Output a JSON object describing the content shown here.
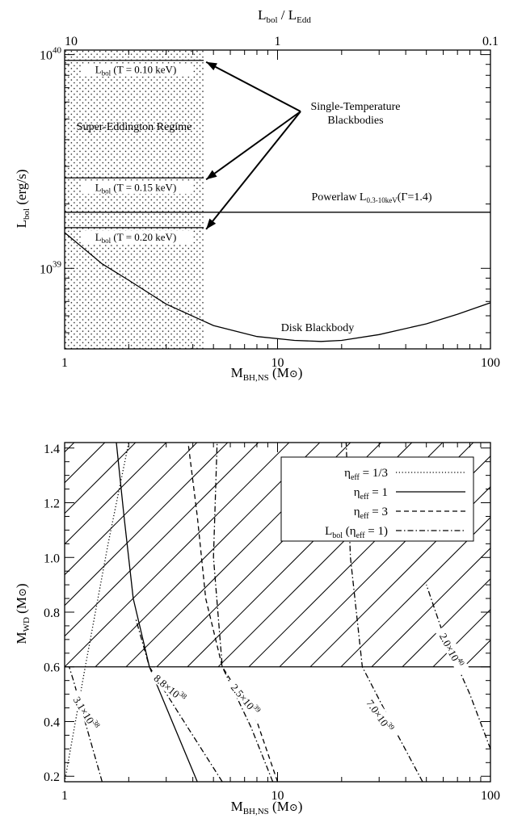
{
  "chart_data": [
    {
      "type": "line",
      "x_scale": "log",
      "y_scale": "log",
      "xlim": [
        1,
        100
      ],
      "ylim": [
        4.2e+38,
        1.05e+40
      ],
      "grid": false,
      "xlabel": {
        "main": "M",
        "sub": "BH,NS",
        "unit": "(M",
        "unit_tail": ")"
      },
      "ylabel": {
        "main": "L",
        "sub": "bol",
        "unit": " (erg/s)"
      },
      "top_axis_label": {
        "a": "L",
        "a_sub": "bol",
        "mid": " / L",
        "b_sub": "Edd"
      },
      "x_ticks": [
        {
          "v": 1,
          "label": "1"
        },
        {
          "v": 10,
          "label": "10"
        },
        {
          "v": 100,
          "label": "100"
        }
      ],
      "top_ticks": [
        {
          "v": 1,
          "label": "10"
        },
        {
          "v": 10,
          "label": "1"
        },
        {
          "v": 100,
          "label": "0.1"
        }
      ],
      "y_ticks": [
        {
          "v": 1e+39,
          "base": "10",
          "exp": "39"
        },
        {
          "v": 1e+40,
          "base": "10",
          "exp": "40"
        }
      ],
      "super_eddington": {
        "label": "Super-Eddington Regime",
        "x_max": 4.5
      },
      "blackbody_lines": [
        {
          "y": 9.4e+39,
          "pre": "L",
          "sub": "bol",
          "post": " (T = 0.10 keV)"
        },
        {
          "y": 2.65e+39,
          "pre": "L",
          "sub": "bol",
          "post": " (T = 0.15 keV)"
        },
        {
          "y": 1.55e+39,
          "pre": "L",
          "sub": "bol",
          "post": " (T = 0.20 keV)"
        }
      ],
      "single_temp_label": [
        "Single-Temperature",
        "Blackbodies"
      ],
      "powerlaw": {
        "y": 1.83e+39,
        "pre": "Powerlaw L",
        "sub": "0.3-10keV",
        "post": "(Γ=1.4)"
      },
      "disk_blackbody": {
        "label": "Disk Blackbody",
        "x": [
          1,
          1.5,
          2,
          3,
          5,
          8,
          12,
          16,
          20,
          30,
          50,
          70,
          100
        ],
        "y": [
          1.47e+39,
          1.05e+39,
          8.8e+38,
          6.8e+38,
          5.4e+38,
          4.8e+38,
          4.6e+38,
          4.55e+38,
          4.6e+38,
          4.9e+38,
          5.5e+38,
          6.1e+38,
          6.9e+38
        ]
      }
    },
    {
      "type": "line",
      "x_scale": "log",
      "y_scale": "linear",
      "xlim": [
        1,
        100
      ],
      "ylim": [
        0.18,
        1.42
      ],
      "grid": false,
      "xlabel": {
        "main": "M",
        "sub": "BH,NS",
        "unit": "(M",
        "unit_tail": ")"
      },
      "ylabel": {
        "main": "M",
        "sub": "WD",
        "unit": " (M",
        "unit_tail": ")"
      },
      "x_ticks": [
        {
          "v": 1,
          "label": "1"
        },
        {
          "v": 10,
          "label": "10"
        },
        {
          "v": 100,
          "label": "100"
        }
      ],
      "y_ticks": [
        {
          "v": 0.2,
          "label": "0.2"
        },
        {
          "v": 0.4,
          "label": "0.4"
        },
        {
          "v": 0.6,
          "label": "0.6"
        },
        {
          "v": 0.8,
          "label": "0.8"
        },
        {
          "v": 1.0,
          "label": "1.0"
        },
        {
          "v": 1.2,
          "label": "1.2"
        },
        {
          "v": 1.4,
          "label": "1.4"
        }
      ],
      "hline": 0.6,
      "legend": {
        "placement": "top-right",
        "entries": [
          {
            "pre": "η",
            "sub": "eff",
            "post": " = 1/3",
            "style": "dotted"
          },
          {
            "pre": "η",
            "sub": "eff",
            "post": " = 1",
            "style": "solid"
          },
          {
            "pre": "η",
            "sub": "eff",
            "post": " = 3",
            "style": "dashed"
          },
          {
            "pre": "L",
            "sub": "bol",
            "post": " (η",
            "sub2": "eff",
            "post2": " = 1)",
            "style": "dashdot"
          }
        ]
      },
      "series": [
        {
          "style": "dotted",
          "x": [
            1.0,
            1.25,
            1.6,
            2.0
          ],
          "y": [
            0.18,
            0.6,
            1.05,
            1.42
          ]
        },
        {
          "style": "solid",
          "x": [
            4.2,
            3.2,
            2.5,
            2.1,
            1.9,
            1.75
          ],
          "y": [
            0.18,
            0.4,
            0.6,
            0.85,
            1.15,
            1.42
          ]
        },
        {
          "style": "dashed",
          "x": [
            10.0,
            8.0,
            5.5,
            4.6,
            4.2,
            3.8
          ],
          "y": [
            0.18,
            0.4,
            0.6,
            0.85,
            1.15,
            1.42
          ]
        },
        {
          "style": "dashdot",
          "x": [
            1.5,
            1.3,
            1.1,
            1.05
          ],
          "y": [
            0.18,
            0.35,
            0.55,
            0.6
          ]
        },
        {
          "style": "dashdot",
          "x": [
            5.5,
            3.5,
            2.5,
            2.15
          ],
          "y": [
            0.18,
            0.42,
            0.6,
            0.78
          ]
        },
        {
          "style": "dashdot",
          "x": [
            9.5,
            7.5,
            5.5,
            5.0,
            5.2
          ],
          "y": [
            0.18,
            0.38,
            0.6,
            1.0,
            1.42
          ]
        },
        {
          "style": "dashdot",
          "x": [
            48.0,
            35.0,
            25.0,
            22.0,
            21.0
          ],
          "y": [
            0.18,
            0.38,
            0.6,
            1.0,
            1.42
          ]
        },
        {
          "style": "dashdot",
          "x": [
            100.0,
            80.0,
            60.0,
            50.0
          ],
          "y": [
            0.3,
            0.5,
            0.72,
            0.9
          ]
        }
      ],
      "contour_labels": [
        {
          "x": 1.25,
          "y": 0.43,
          "angle": 58,
          "base": "3.1×10",
          "exp": "38"
        },
        {
          "x": 3.1,
          "y": 0.52,
          "angle": 40,
          "base": "8.8×10",
          "exp": "38"
        },
        {
          "x": 7.0,
          "y": 0.48,
          "angle": 50,
          "base": "2.5×10",
          "exp": "39"
        },
        {
          "x": 30.0,
          "y": 0.42,
          "angle": 55,
          "base": "7.0×10",
          "exp": "39"
        },
        {
          "x": 65.0,
          "y": 0.66,
          "angle": 62,
          "base": "2.0×10",
          "exp": "40"
        }
      ]
    }
  ]
}
